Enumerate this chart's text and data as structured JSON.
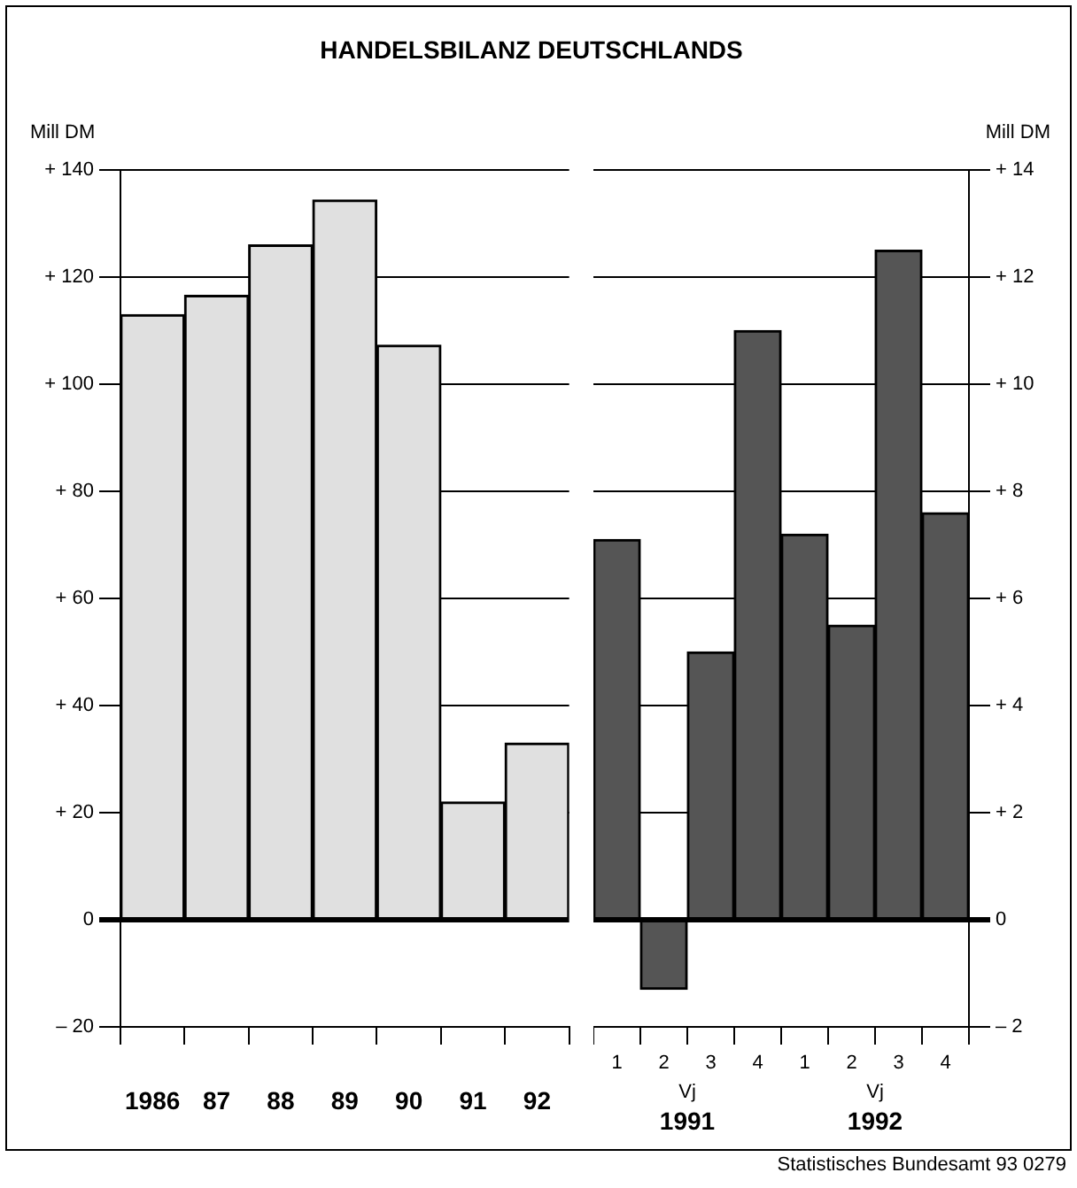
{
  "chart_data": [
    {
      "type": "bar",
      "title": "HANDELSBILANZ DEUTSCHLANDS",
      "ylabel": "Mill DM",
      "categories": [
        "1986",
        "87",
        "88",
        "89",
        "90",
        "91",
        "92"
      ],
      "values": [
        113,
        116.6,
        126,
        134.4,
        107.3,
        22,
        33
      ],
      "color": "#e0e0e0",
      "ylim": [
        -20,
        140
      ],
      "yticks": [
        {
          "value": -20,
          "label": "– 20"
        },
        0,
        {
          "value": 20,
          "label": "+ 20"
        },
        {
          "value": 40,
          "label": "+ 40"
        },
        {
          "value": 60,
          "label": "+ 60"
        },
        {
          "value": 80,
          "label": "+ 80"
        },
        {
          "value": 100,
          "label": "+ 100"
        },
        {
          "value": 120,
          "label": "+ 120"
        },
        {
          "value": 140,
          "label": "+ 140"
        }
      ],
      "grid": "y"
    },
    {
      "type": "bar",
      "y2label": "Mill DM",
      "categories": [
        "1",
        "2",
        "3",
        "4",
        "1",
        "2",
        "3",
        "4"
      ],
      "series": [
        {
          "color": "#555555",
          "axis": "y2",
          "values": [
            7.1,
            -1.3,
            5.0,
            11.0,
            7.2,
            5.5,
            12.5,
            7.6
          ]
        }
      ],
      "y2lim": [
        -2,
        14
      ],
      "y2ticks": [
        {
          "value": -2,
          "label": "– 2"
        },
        0,
        {
          "value": 2,
          "label": "+ 2"
        },
        {
          "value": 4,
          "label": "+ 4"
        },
        {
          "value": 6,
          "label": "+ 6"
        },
        {
          "value": 8,
          "label": "+ 8"
        },
        {
          "value": 10,
          "label": "+ 10"
        },
        {
          "value": 12,
          "label": "+ 12"
        },
        {
          "value": 14,
          "label": "+ 14"
        }
      ],
      "grid": "y",
      "annotations": [
        "Vj",
        "1991",
        "Vj",
        "1992",
        "Statistisches Bundesamt 93 0279"
      ]
    }
  ]
}
